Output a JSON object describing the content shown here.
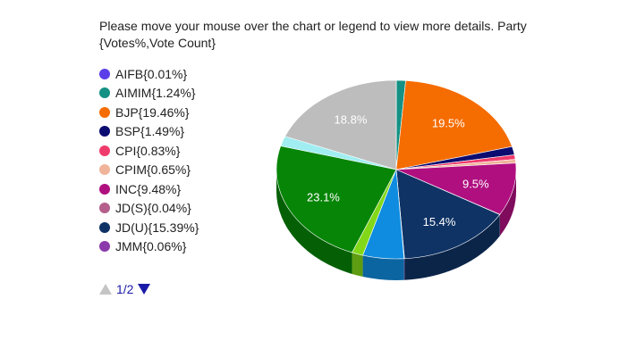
{
  "chart_data": {
    "type": "pie",
    "title": "Please move your mouse over the chart or legend to view more details. Party {Votes%,Vote Count}",
    "legend_position": "left",
    "legend": [
      {
        "label": "AIFB{0.01%}",
        "color": "#5b3ee8"
      },
      {
        "label": "AIMIM{1.24%}",
        "color": "#149184"
      },
      {
        "label": "BJP{19.46%}",
        "color": "#f56c00"
      },
      {
        "label": "BSP{1.49%}",
        "color": "#0c0c70"
      },
      {
        "label": "CPI{0.83%}",
        "color": "#ef3b6c"
      },
      {
        "label": "CPIM{0.65%}",
        "color": "#f0b49a"
      },
      {
        "label": "INC{9.48%}",
        "color": "#b00f80"
      },
      {
        "label": "JD(S){0.04%}",
        "color": "#b45f8c"
      },
      {
        "label": "JD(U){15.39%}",
        "color": "#0f3365"
      },
      {
        "label": "JMM{0.06%}",
        "color": "#8a3aaa"
      }
    ],
    "slices": [
      {
        "value": 0.01,
        "color": "#5b3ee8"
      },
      {
        "value": 1.24,
        "color": "#149184"
      },
      {
        "value": 19.46,
        "color": "#f56c00",
        "label": "19.5%"
      },
      {
        "value": 1.49,
        "color": "#0c0c70"
      },
      {
        "value": 0.83,
        "color": "#ef3b6c"
      },
      {
        "value": 0.65,
        "color": "#f0b49a"
      },
      {
        "value": 9.48,
        "color": "#b00f80",
        "label": "9.5%"
      },
      {
        "value": 0.04,
        "color": "#b45f8c"
      },
      {
        "value": 15.39,
        "color": "#0f3365",
        "label": "15.4%"
      },
      {
        "value": 0.06,
        "color": "#8a3aaa"
      },
      {
        "value": 5.5,
        "color": "#0f8ce0"
      },
      {
        "value": 1.5,
        "color": "#82d818"
      },
      {
        "value": 23.1,
        "color": "#078507",
        "label": "23.1%"
      },
      {
        "value": 1.8,
        "color": "#a0eef2"
      },
      {
        "value": 18.8,
        "color": "#bdbdbd",
        "label": "18.8%"
      }
    ]
  },
  "pager": {
    "label": "1/2"
  }
}
